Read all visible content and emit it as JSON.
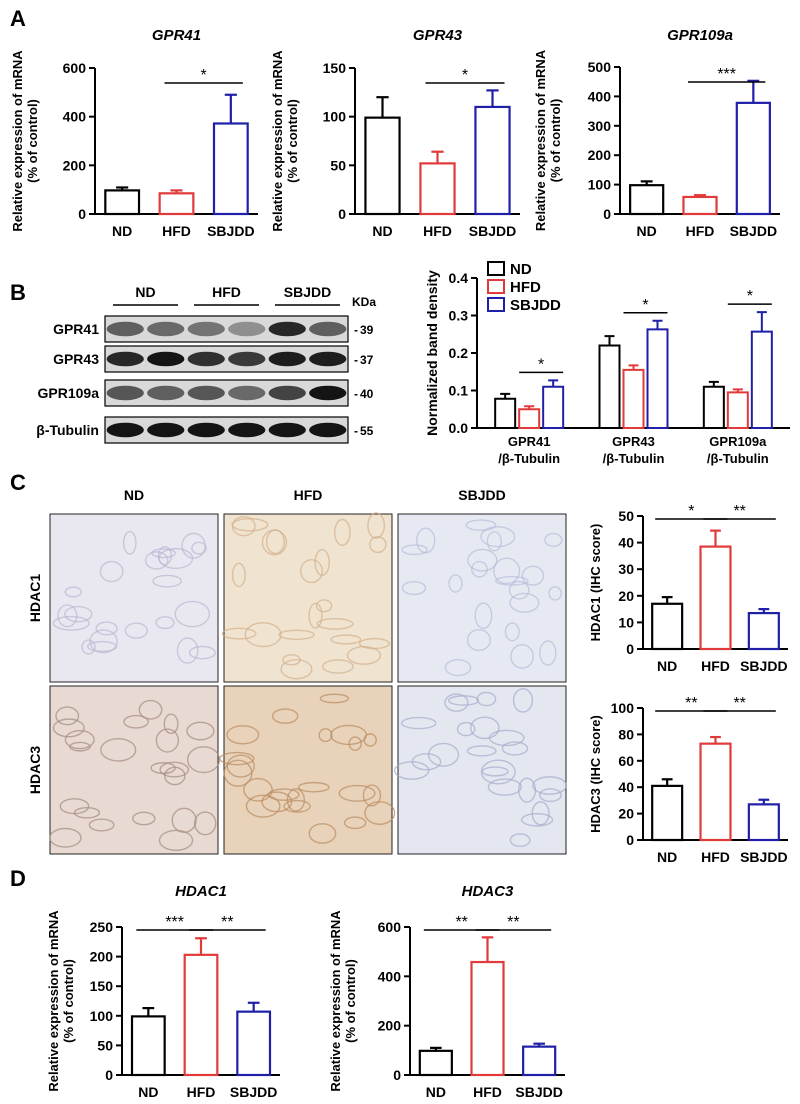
{
  "panels": {
    "A": "A",
    "B": "B",
    "C": "C",
    "D": "D"
  },
  "colors": {
    "ND": "#000000",
    "HFD": "#e03a3a",
    "SBJDD": "#1f1fa8"
  },
  "chart_data": [
    {
      "id": "A1",
      "type": "bar",
      "title": "GPR41",
      "ylabel": [
        "Relative expression of mRNA",
        "(% of control)"
      ],
      "categories": [
        "ND",
        "HFD",
        "SBJDD"
      ],
      "values": [
        97,
        85,
        372
      ],
      "errors": [
        12,
        12,
        118
      ],
      "ylim": [
        0,
        600
      ],
      "yticks": [
        0,
        200,
        400,
        600
      ],
      "sig": [
        {
          "from": 1,
          "to": 2,
          "label": "*"
        }
      ]
    },
    {
      "id": "A2",
      "type": "bar",
      "title": "GPR43",
      "ylabel": [
        "Relative expression of mRNA",
        "(% of control)"
      ],
      "categories": [
        "ND",
        "HFD",
        "SBJDD"
      ],
      "values": [
        99,
        52,
        110
      ],
      "errors": [
        21,
        12,
        17
      ],
      "ylim": [
        0,
        150
      ],
      "yticks": [
        0,
        50,
        100,
        150
      ],
      "sig": [
        {
          "from": 1,
          "to": 2,
          "label": "*"
        }
      ]
    },
    {
      "id": "A3",
      "type": "bar",
      "title": "GPR109a",
      "ylabel": [
        "Relative expression of mRNA",
        "(% of control)"
      ],
      "categories": [
        "ND",
        "HFD",
        "SBJDD"
      ],
      "values": [
        98,
        58,
        378
      ],
      "errors": [
        13,
        6,
        75
      ],
      "ylim": [
        0,
        500
      ],
      "yticks": [
        0,
        100,
        200,
        300,
        400,
        500
      ],
      "sig": [
        {
          "from": 1,
          "to": 2,
          "label": "***"
        }
      ]
    },
    {
      "id": "B",
      "type": "bar",
      "ylabel": [
        "Normalized band density"
      ],
      "categories": [
        "GPR41\n/β-Tubulin",
        "GPR43\n/β-Tubulin",
        "GPR109a\n/β-Tubulin"
      ],
      "series": [
        {
          "name": "ND",
          "values": [
            0.078,
            0.22,
            0.11
          ],
          "errors": [
            0.013,
            0.025,
            0.013
          ]
        },
        {
          "name": "HFD",
          "values": [
            0.05,
            0.155,
            0.095
          ],
          "errors": [
            0.008,
            0.012,
            0.008
          ]
        },
        {
          "name": "SBJDD",
          "values": [
            0.11,
            0.263,
            0.257
          ],
          "errors": [
            0.017,
            0.023,
            0.052
          ]
        }
      ],
      "ylim": [
        0,
        0.4
      ],
      "yticks": [
        "0.0",
        "0.1",
        "0.2",
        "0.3",
        "0.4"
      ],
      "legend": "top-left",
      "sig": [
        {
          "group": 0,
          "label": "*"
        },
        {
          "group": 1,
          "label": "*"
        },
        {
          "group": 2,
          "label": "*"
        }
      ]
    },
    {
      "id": "C1",
      "type": "bar",
      "ylabel": [
        "HDAC1 (IHC score)"
      ],
      "categories": [
        "ND",
        "HFD",
        "SBJDD"
      ],
      "values": [
        17,
        38.5,
        13.5
      ],
      "errors": [
        2.5,
        6,
        1.5
      ],
      "ylim": [
        0,
        50
      ],
      "yticks": [
        0,
        10,
        20,
        30,
        40,
        50
      ],
      "sig": [
        {
          "from": 0,
          "to": 1,
          "label": "*"
        },
        {
          "from": 1,
          "to": 2,
          "label": "**"
        }
      ]
    },
    {
      "id": "C2",
      "type": "bar",
      "ylabel": [
        "HDAC3 (IHC score)"
      ],
      "categories": [
        "ND",
        "HFD",
        "SBJDD"
      ],
      "values": [
        41,
        73,
        27
      ],
      "errors": [
        5,
        5,
        3.5
      ],
      "ylim": [
        0,
        100
      ],
      "yticks": [
        0,
        20,
        40,
        60,
        80,
        100
      ],
      "sig": [
        {
          "from": 0,
          "to": 1,
          "label": "**"
        },
        {
          "from": 1,
          "to": 2,
          "label": "**"
        }
      ]
    },
    {
      "id": "D1",
      "type": "bar",
      "title": "HDAC1",
      "ylabel": [
        "Relative expression of mRNA",
        "(% of control)"
      ],
      "categories": [
        "ND",
        "HFD",
        "SBJDD"
      ],
      "values": [
        99,
        203,
        107
      ],
      "errors": [
        14,
        28,
        15
      ],
      "ylim": [
        0,
        250
      ],
      "yticks": [
        0,
        50,
        100,
        150,
        200,
        250
      ],
      "sig": [
        {
          "from": 0,
          "to": 1,
          "label": "***"
        },
        {
          "from": 1,
          "to": 2,
          "label": "**"
        }
      ]
    },
    {
      "id": "D2",
      "type": "bar",
      "title": "HDAC3",
      "ylabel": [
        "Relative expression of mRNA",
        "(% of control)"
      ],
      "categories": [
        "ND",
        "HFD",
        "SBJDD"
      ],
      "values": [
        98,
        458,
        115
      ],
      "errors": [
        12,
        100,
        12
      ],
      "ylim": [
        0,
        600
      ],
      "yticks": [
        0,
        200,
        400,
        600
      ],
      "sig": [
        {
          "from": 0,
          "to": 1,
          "label": "**"
        },
        {
          "from": 1,
          "to": 2,
          "label": "**"
        }
      ]
    }
  ],
  "blot": {
    "groups": [
      "ND",
      "HFD",
      "SBJDD"
    ],
    "kda_label": "KDa",
    "rows": [
      {
        "name": "GPR41",
        "kda": "39",
        "intensity": [
          0.55,
          0.5,
          0.45,
          0.3,
          0.85,
          0.55
        ]
      },
      {
        "name": "GPR43",
        "kda": "37",
        "intensity": [
          0.85,
          0.95,
          0.8,
          0.75,
          0.9,
          0.9
        ]
      },
      {
        "name": "GPR109a",
        "kda": "40",
        "intensity": [
          0.6,
          0.55,
          0.6,
          0.5,
          0.7,
          0.95
        ]
      },
      {
        "name": "β-Tubulin",
        "kda": "55",
        "intensity": [
          0.95,
          0.95,
          0.95,
          0.95,
          0.95,
          0.95
        ]
      }
    ]
  },
  "ihc": {
    "columns": [
      "ND",
      "HFD",
      "SBJDD"
    ],
    "rows": [
      "HDAC1",
      "HDAC3"
    ]
  }
}
